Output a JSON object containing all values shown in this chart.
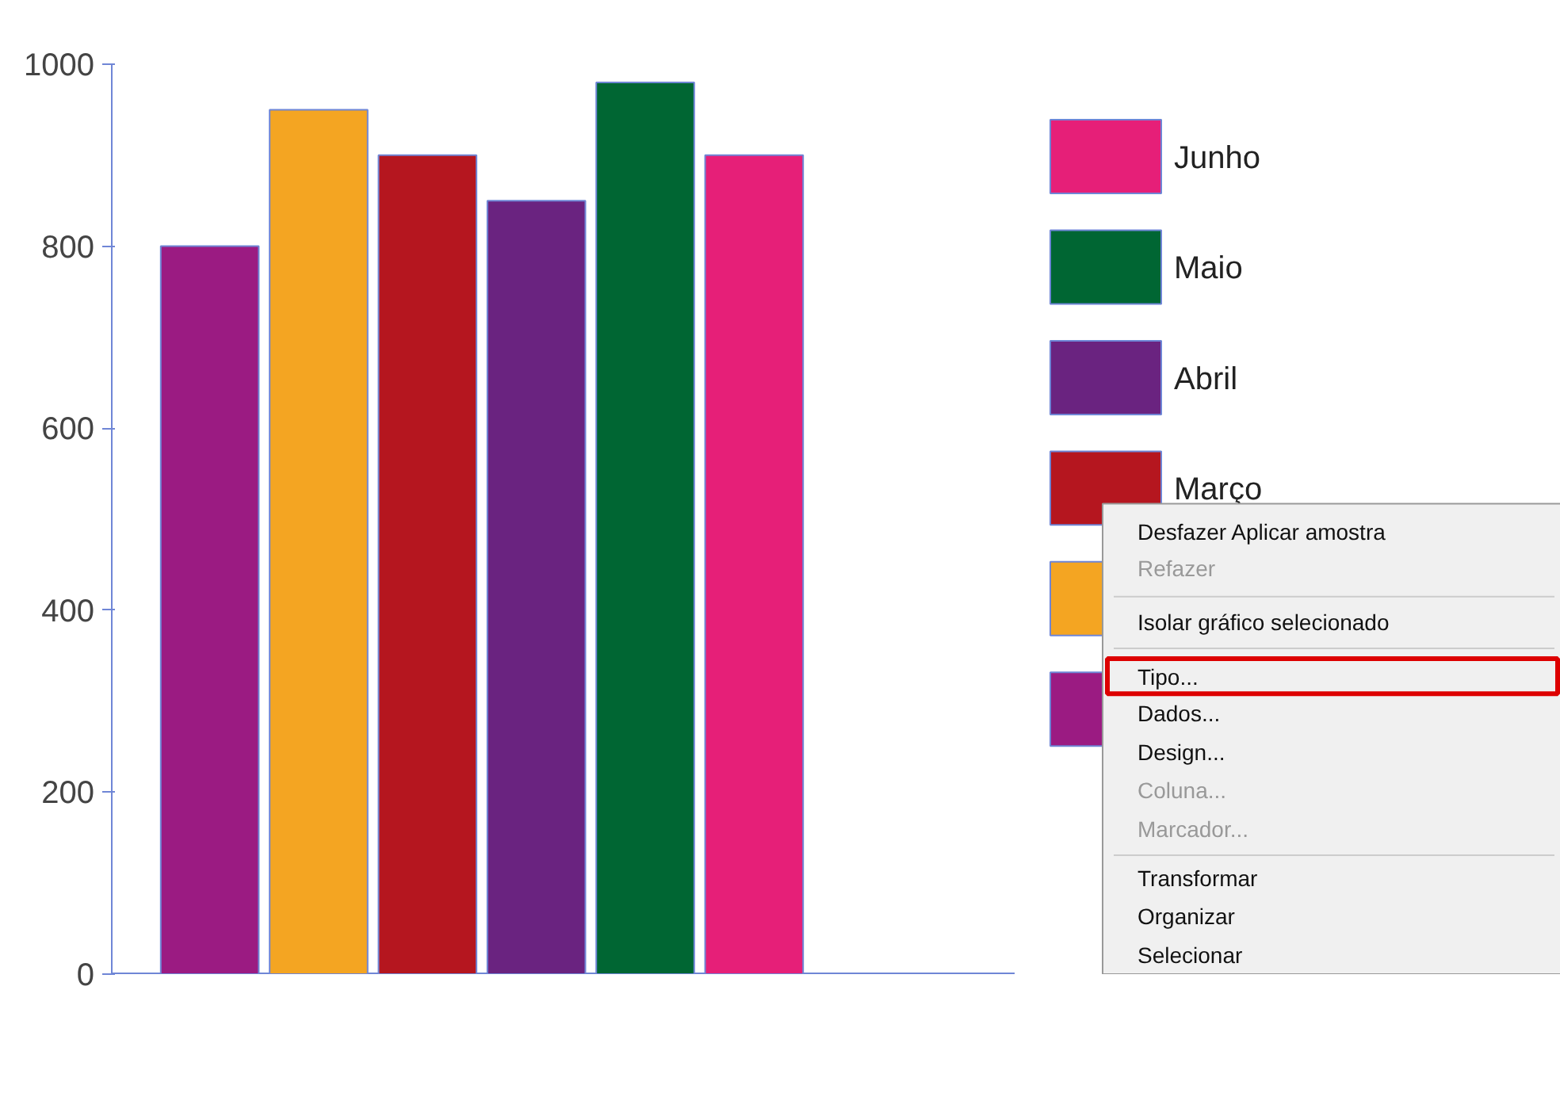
{
  "chart_data": {
    "type": "bar",
    "categories": [
      null
    ],
    "series": [
      {
        "color": "#9b1b82",
        "values": [
          800
        ]
      },
      {
        "color": "#f4a522",
        "values": [
          950
        ]
      },
      {
        "name": "Março",
        "color": "#b5161f",
        "values": [
          900
        ]
      },
      {
        "name": "Abril",
        "color": "#6a2380",
        "values": [
          850
        ]
      },
      {
        "name": "Maio",
        "color": "#006633",
        "values": [
          980
        ]
      },
      {
        "name": "Junho",
        "color": "#e61f78",
        "values": [
          900
        ]
      }
    ],
    "ylim": [
      0,
      1000
    ],
    "yticks": [
      0,
      200,
      400,
      600,
      800,
      1000
    ],
    "grid": false,
    "legend": "right",
    "annotations": [
      "Desfazer Aplicar amostra",
      "Refazer",
      "Isolar gráfico selecionado",
      "Tipo...",
      "Dados...",
      "Design...",
      "Coluna...",
      "Marcador...",
      "Transformar",
      "Organizar",
      "Selecionar"
    ]
  }
}
